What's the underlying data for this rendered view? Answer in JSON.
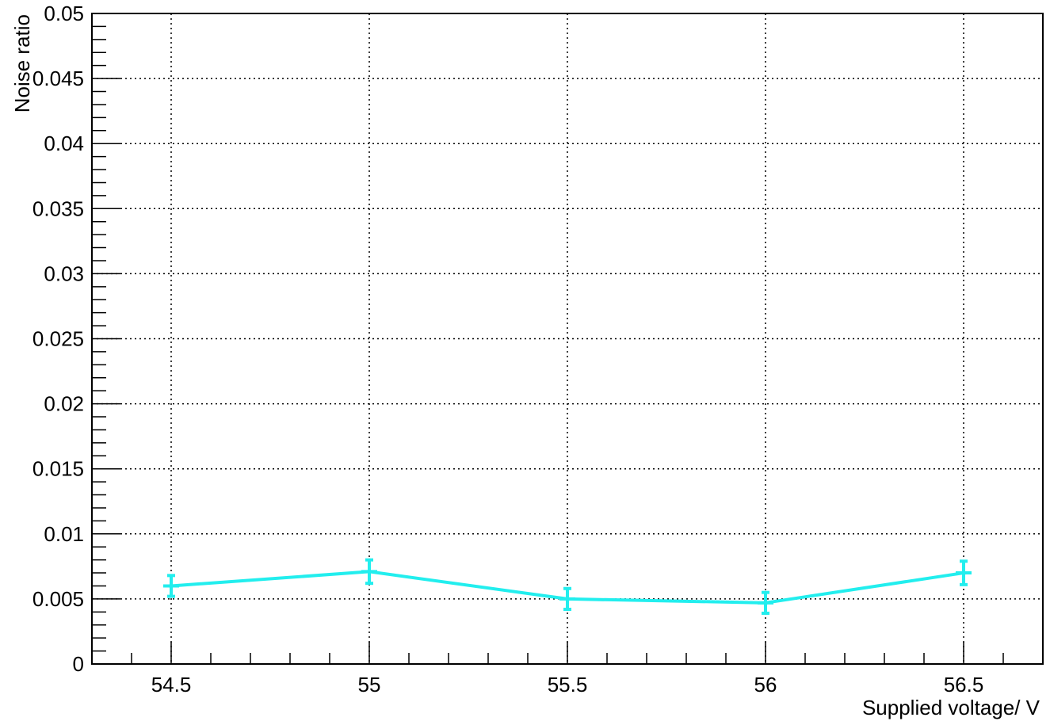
{
  "chart_data": {
    "type": "line",
    "title": "",
    "xlabel": "Supplied voltage/ V",
    "ylabel": "Noise ratio",
    "xlim": [
      54.3,
      56.7
    ],
    "ylim": [
      0,
      0.05
    ],
    "grid": true,
    "x_ticks": [
      "54.5",
      "55",
      "55.5",
      "56",
      "56.5"
    ],
    "y_ticks": [
      "0",
      "0.005",
      "0.01",
      "0.015",
      "0.02",
      "0.025",
      "0.03",
      "0.035",
      "0.04",
      "0.045",
      "0.05"
    ],
    "series": [
      {
        "color": "#22eeee",
        "x": [
          54.5,
          55.0,
          55.5,
          56.0,
          56.5
        ],
        "y": [
          0.006,
          0.0071,
          0.005,
          0.0047,
          0.007
        ],
        "yerr": [
          0.0008,
          0.0009,
          0.0008,
          0.0008,
          0.0009
        ],
        "xerr": [
          0.02,
          0.02,
          0.02,
          0.02,
          0.02
        ]
      }
    ]
  }
}
